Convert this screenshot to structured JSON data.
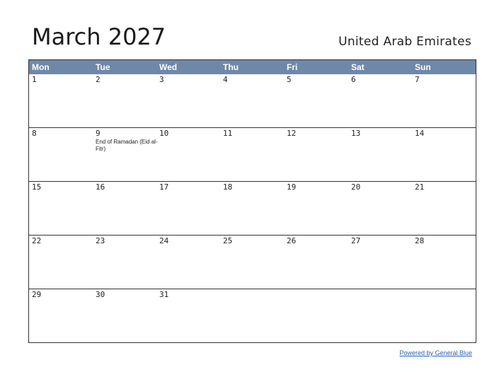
{
  "header": {
    "month_title": "March 2027",
    "country": "United Arab Emirates"
  },
  "weekdays": [
    "Mon",
    "Tue",
    "Wed",
    "Thu",
    "Fri",
    "Sat",
    "Sun"
  ],
  "weeks": [
    [
      {
        "day": "1"
      },
      {
        "day": "2"
      },
      {
        "day": "3"
      },
      {
        "day": "4"
      },
      {
        "day": "5"
      },
      {
        "day": "6"
      },
      {
        "day": "7"
      }
    ],
    [
      {
        "day": "8"
      },
      {
        "day": "9",
        "event": "End of Ramadan (Eid al-Fitr)"
      },
      {
        "day": "10"
      },
      {
        "day": "11"
      },
      {
        "day": "12"
      },
      {
        "day": "13"
      },
      {
        "day": "14"
      }
    ],
    [
      {
        "day": "15"
      },
      {
        "day": "16"
      },
      {
        "day": "17"
      },
      {
        "day": "18"
      },
      {
        "day": "19"
      },
      {
        "day": "20"
      },
      {
        "day": "21"
      }
    ],
    [
      {
        "day": "22"
      },
      {
        "day": "23"
      },
      {
        "day": "24"
      },
      {
        "day": "25"
      },
      {
        "day": "26"
      },
      {
        "day": "27"
      },
      {
        "day": "28"
      }
    ],
    [
      {
        "day": "29"
      },
      {
        "day": "30"
      },
      {
        "day": "31"
      },
      {
        "day": ""
      },
      {
        "day": ""
      },
      {
        "day": ""
      },
      {
        "day": ""
      }
    ]
  ],
  "footer": {
    "link_text": "Powered by General Blue"
  },
  "colors": {
    "header_bg": "#6f88a8",
    "header_text": "#ffffff",
    "border": "#333333",
    "link": "#2a62b8"
  }
}
